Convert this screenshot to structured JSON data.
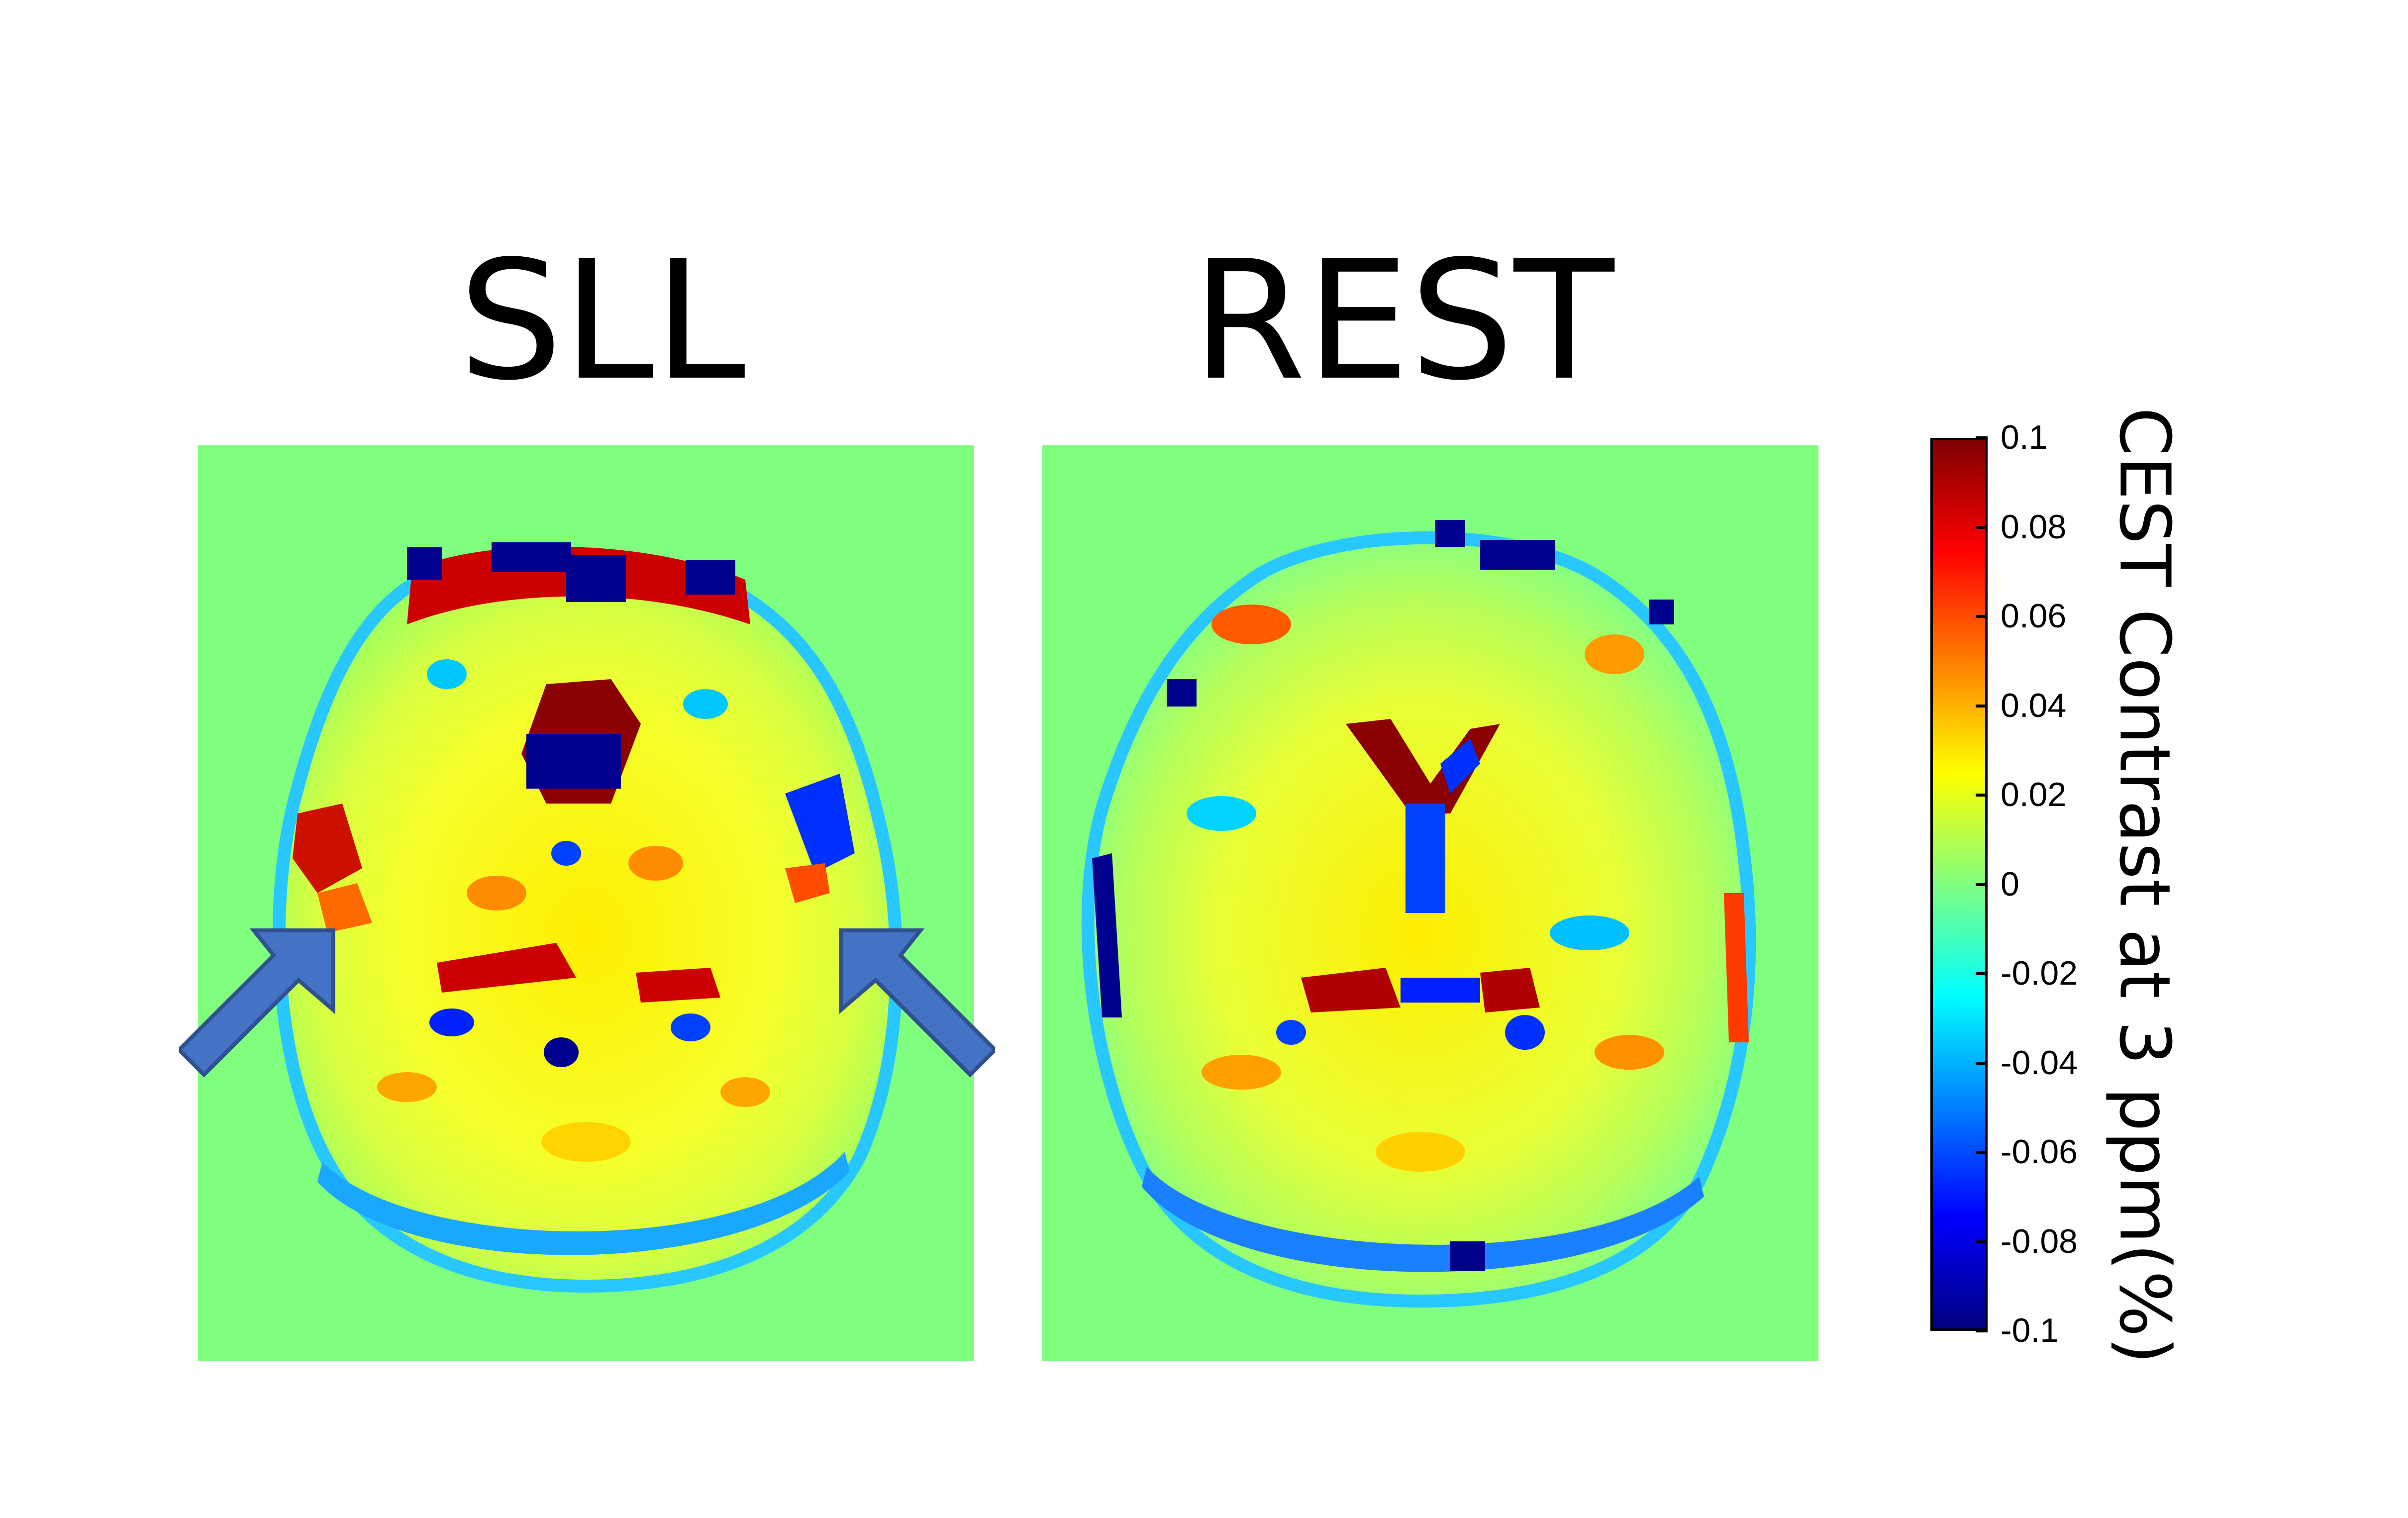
{
  "panels": [
    {
      "title": "SLL"
    },
    {
      "title": "REST"
    }
  ],
  "colorbar": {
    "label": "CEST Contrast at 3 ppm(%)",
    "min": -0.1,
    "max": 0.1,
    "colormap": "jet",
    "ticks": [
      "0.1",
      "0.08",
      "0.06",
      "0.04",
      "0.02",
      "0",
      "-0.02",
      "-0.04",
      "-0.06",
      "-0.08",
      "-0.1"
    ]
  },
  "colors": {
    "background_green": "#80ff7e",
    "arrow_fill": "#4472c4",
    "arrow_stroke": "#2f528f"
  },
  "annotations": {
    "arrows_on_panel": "SLL",
    "arrow_count": 2
  }
}
